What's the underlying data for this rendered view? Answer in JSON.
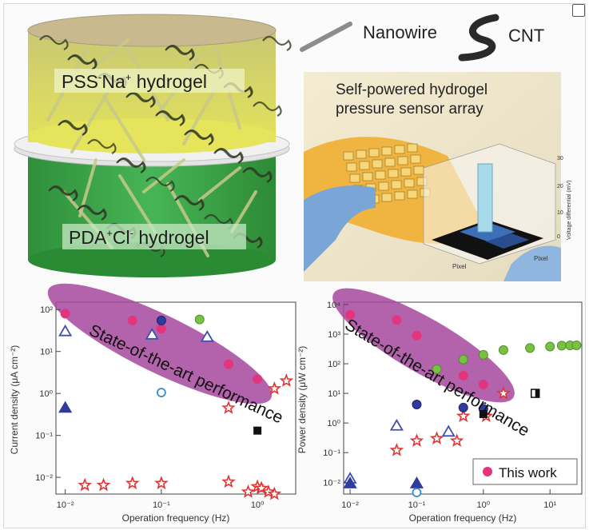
{
  "figure": {
    "colors": {
      "top_gel": "#d7d650",
      "bottom_gel": "#3aa748",
      "separator": "#d9d9d9",
      "fiber": "#2f3a25",
      "rod": "#c8c98a",
      "ellipse_highlight": "#a6489c",
      "star": "#e23333",
      "blue_marker": "#2f3c9c",
      "green_marker": "#79c142",
      "this_work": "#e2357d"
    },
    "hydrogel": {
      "top_label_parts": [
        "PSS",
        "-",
        "Na",
        "+",
        " hydrogel"
      ],
      "bottom_label_parts": [
        "PDA",
        "+",
        "Cl",
        "-",
        " hydrogel"
      ]
    },
    "legend": {
      "nanowire": "Nanowire",
      "cnt": "CNT"
    },
    "photo": {
      "title_line1": "Self-powered hydrogel",
      "title_line2": "pressure sensor array",
      "zaxis_label": "Voltage differential (mV)",
      "zticks": [
        "30",
        "20",
        "10",
        "0"
      ],
      "pixel_label_left": "Pixel",
      "pixel_label_right": "Pixel"
    },
    "this_work_label": "This work"
  },
  "chart_data": [
    {
      "type": "scatter",
      "title": "",
      "xlabel": "Operation frequency (Hz)",
      "ylabel": "Current density (μA cm⁻²)",
      "xscale": "log",
      "yscale": "log",
      "xlim": [
        0.008,
        2.5
      ],
      "ylim": [
        0.004,
        150
      ],
      "xtick_labels": [
        "10⁻²",
        "10⁻¹",
        "10⁰"
      ],
      "xticks": [
        0.01,
        0.1,
        1
      ],
      "ytick_labels": [
        "10⁻²",
        "10⁻¹",
        "10⁰",
        "10¹",
        "10²"
      ],
      "yticks": [
        0.01,
        0.1,
        1,
        10,
        100
      ],
      "annotation": "State-of-the-art performance",
      "series": [
        {
          "marker": "circle-magenta",
          "points": [
            [
              0.01,
              80
            ],
            [
              0.05,
              55
            ],
            [
              0.1,
              35
            ],
            [
              0.5,
              5
            ],
            [
              1,
              2.2
            ]
          ]
        },
        {
          "marker": "star-red",
          "points": [
            [
              0.016,
              0.0065
            ],
            [
              0.025,
              0.0065
            ],
            [
              0.05,
              0.0072
            ],
            [
              0.1,
              0.0072
            ],
            [
              0.5,
              0.0078
            ],
            [
              0.8,
              0.0045
            ],
            [
              1.0,
              0.006
            ],
            [
              1.1,
              0.0055
            ],
            [
              1.3,
              0.0045
            ],
            [
              1.5,
              0.004
            ],
            [
              0.5,
              0.45
            ],
            [
              1.5,
              1.3
            ],
            [
              2.0,
              2.0
            ]
          ]
        },
        {
          "marker": "triangle-open-blue",
          "points": [
            [
              0.01,
              30
            ],
            [
              0.3,
              22
            ],
            [
              0.08,
              25
            ]
          ]
        },
        {
          "marker": "triangle-filled-blue",
          "points": [
            [
              0.01,
              0.45
            ]
          ]
        },
        {
          "marker": "circle-blue",
          "points": [
            [
              0.1,
              55
            ]
          ]
        },
        {
          "marker": "circle-green",
          "points": [
            [
              0.25,
              58
            ]
          ]
        },
        {
          "marker": "circle-open-blue",
          "points": [
            [
              0.1,
              1.05
            ]
          ]
        },
        {
          "marker": "square-black",
          "points": [
            [
              1.0,
              0.13
            ]
          ]
        }
      ]
    },
    {
      "type": "scatter",
      "title": "",
      "xlabel": "Operation frequency (Hz)",
      "ylabel": "Power density (μW cm⁻²)",
      "xscale": "log",
      "yscale": "log",
      "xlim": [
        0.008,
        30
      ],
      "ylim": [
        0.004,
        12000
      ],
      "xtick_labels": [
        "10⁻²",
        "10⁻¹",
        "10⁰",
        "10¹"
      ],
      "xticks": [
        0.01,
        0.1,
        1,
        10
      ],
      "ytick_labels": [
        "10⁻²",
        "10⁻¹",
        "10⁰",
        "10¹",
        "10²",
        "10³",
        "10⁴"
      ],
      "yticks": [
        0.01,
        0.1,
        1,
        10,
        100,
        1000,
        10000
      ],
      "annotation": "State-of-the-art performance",
      "series": [
        {
          "marker": "circle-magenta",
          "name": "This work",
          "points": [
            [
              0.01,
              4500
            ],
            [
              0.05,
              3000
            ],
            [
              0.1,
              900
            ],
            [
              0.5,
              40
            ],
            [
              1,
              20
            ]
          ]
        },
        {
          "marker": "circle-green",
          "points": [
            [
              0.2,
              65
            ],
            [
              0.5,
              140
            ],
            [
              1.0,
              200
            ],
            [
              2.0,
              290
            ],
            [
              5.0,
              340
            ],
            [
              10,
              380
            ],
            [
              15,
              410
            ],
            [
              20,
              420
            ],
            [
              25,
              420
            ]
          ]
        },
        {
          "marker": "star-red",
          "points": [
            [
              0.05,
              0.12
            ],
            [
              0.1,
              0.25
            ],
            [
              0.2,
              0.3
            ],
            [
              0.4,
              0.25
            ],
            [
              0.5,
              1.7
            ],
            [
              1.1,
              1.7
            ],
            [
              2.0,
              10
            ]
          ]
        },
        {
          "marker": "circle-blue",
          "points": [
            [
              0.1,
              4.2
            ],
            [
              0.5,
              3.3
            ],
            [
              1.0,
              3.0
            ]
          ]
        },
        {
          "marker": "triangle-open-blue",
          "points": [
            [
              0.05,
              0.8
            ],
            [
              0.3,
              0.5
            ],
            [
              0.01,
              0.013
            ]
          ]
        },
        {
          "marker": "triangle-filled-blue",
          "points": [
            [
              0.01,
              0.009
            ],
            [
              0.1,
              0.009
            ]
          ]
        },
        {
          "marker": "circle-open-blue",
          "points": [
            [
              0.1,
              0.0045
            ]
          ]
        },
        {
          "marker": "square-black",
          "points": [
            [
              1.0,
              2.0
            ]
          ]
        },
        {
          "marker": "square-half",
          "points": [
            [
              6.0,
              10
            ]
          ]
        }
      ]
    }
  ]
}
